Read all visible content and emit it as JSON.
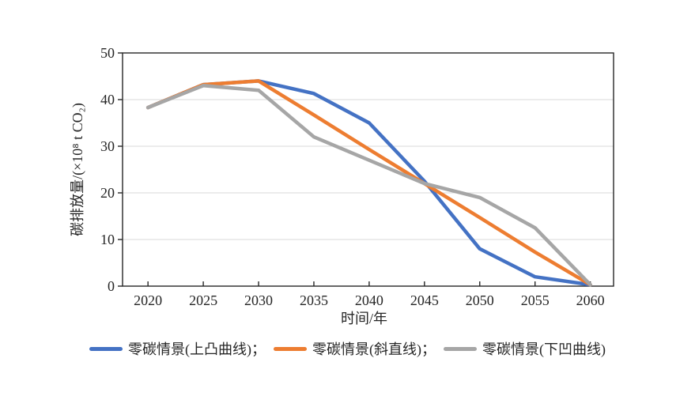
{
  "chart_data": {
    "type": "line",
    "title": "",
    "xlabel": "时间/年",
    "ylabel": "碳排放量/(×10⁸ t CO₂)",
    "x": [
      2020,
      2025,
      2030,
      2035,
      2040,
      2045,
      2050,
      2055,
      2060
    ],
    "xlim": [
      2017.7,
      2062.1
    ],
    "ylim": [
      0,
      50
    ],
    "yticks": [
      0,
      10,
      20,
      30,
      40,
      50
    ],
    "grid": "horizontal",
    "series": [
      {
        "id": "convex-curve",
        "name": "零碳情景(上凸曲线)",
        "color": "#4472C4",
        "values": [
          38.3,
          43.2,
          44,
          41.3,
          35,
          22.5,
          8,
          2,
          0.3
        ]
      },
      {
        "id": "straight-line",
        "name": "零碳情景(斜直线)",
        "color": "#ED7D31",
        "values": [
          38.3,
          43.2,
          44,
          36.7,
          29.3,
          22,
          14.7,
          7.3,
          0.3
        ]
      },
      {
        "id": "concave-curve",
        "name": "零碳情景(下凹曲线)",
        "color": "#A6A6A6",
        "values": [
          38.3,
          43,
          42,
          32,
          27,
          22,
          19,
          12.5,
          0.3
        ]
      }
    ],
    "legend": {
      "position": "bottom",
      "items": [
        "零碳情景(上凸曲线)；",
        "零碳情景(斜直线)；",
        "零碳情景(下凹曲线)"
      ]
    },
    "colors": {
      "axis": "#262626",
      "gridline": "#d9d9d9",
      "text": "#262626",
      "background": "#ffffff"
    }
  }
}
